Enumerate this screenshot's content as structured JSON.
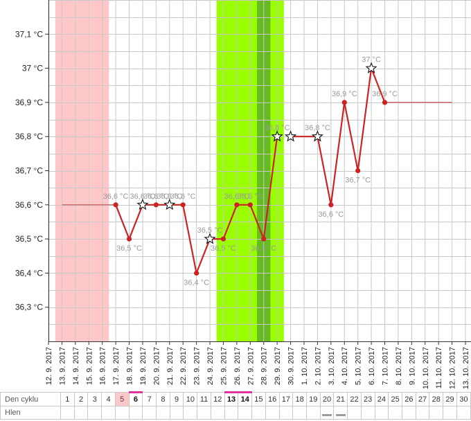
{
  "chart_data": {
    "type": "line",
    "y_unit_label": "°C",
    "ylim": [
      36.2,
      37.2
    ],
    "y_ticks": [
      "36,3 °C",
      "36,4 °C",
      "36,5 °C",
      "36,6 °C",
      "36,7 °C",
      "36,8 °C",
      "36,9 °C",
      "37 °C",
      "37,1 °C"
    ],
    "y_tick_values": [
      36.3,
      36.4,
      36.5,
      36.6,
      36.7,
      36.8,
      36.9,
      37.0,
      37.1
    ],
    "dates": [
      "12. 9. 2017",
      "13. 9. 2017",
      "14. 9. 2017",
      "15. 9. 2017",
      "16. 9. 2017",
      "17. 9. 2017",
      "18. 9. 2017",
      "19. 9. 2017",
      "20. 9. 2017",
      "21. 9. 2017",
      "22. 9. 2017",
      "23. 9. 2017",
      "24. 9. 2017",
      "25. 9. 2017",
      "26. 9. 2017",
      "27. 9. 2017",
      "28. 9. 2017",
      "29. 9. 2017",
      "30. 9. 2017",
      "1. 10. 2017",
      "2. 10. 2017",
      "3. 10. 2017",
      "4. 10. 2017",
      "5. 10. 2017",
      "6. 10. 2017",
      "7. 10. 2017",
      "8. 10. 2017",
      "9. 10. 2017",
      "10. 10. 2017",
      "11. 10. 2017",
      "12. 10. 2017",
      "13. 10. 2017"
    ],
    "grid": true,
    "regions": [
      {
        "kind": "menses",
        "from_index": 0.5,
        "to_index": 4.5,
        "color": "#ffc8c8"
      },
      {
        "kind": "fertile",
        "from_index": 12.5,
        "to_index": 17.5,
        "color": "#99ff00"
      },
      {
        "kind": "peak",
        "from_index": 15.5,
        "to_index": 16.5,
        "color": "#66bb22"
      }
    ],
    "coverline": [
      {
        "from_index": 1,
        "to_index": 5,
        "value": 36.6
      },
      {
        "from_index": 18,
        "to_index": 19,
        "value": 36.8
      },
      {
        "from_index": 25,
        "to_index": 30,
        "value": 36.9
      }
    ],
    "series": [
      {
        "color": "#cc2222",
        "points": [
          {
            "date_index": 5,
            "value": 36.6,
            "label": "36,6 °C",
            "marker": "dot"
          },
          {
            "date_index": 6,
            "value": 36.5,
            "label": "36,5 °C",
            "marker": "dot"
          },
          {
            "date_index": 7,
            "value": 36.6,
            "label": "36,6 °C",
            "marker": "star"
          },
          {
            "date_index": 8,
            "value": 36.6,
            "label": "36,6 °C",
            "marker": "dot"
          },
          {
            "date_index": 9,
            "value": 36.6,
            "label": "36,6 °C",
            "marker": "star"
          },
          {
            "date_index": 10,
            "value": 36.6,
            "label": "36,6 °C",
            "marker": "dot"
          },
          {
            "date_index": 11,
            "value": 36.4,
            "label": "36,4 °C",
            "marker": "dot"
          },
          {
            "date_index": 12,
            "value": 36.5,
            "label": "36,5 °C",
            "marker": "star"
          },
          {
            "date_index": 13,
            "value": 36.5,
            "label": "36,5 °C",
            "marker": "dot"
          },
          {
            "date_index": 14,
            "value": 36.6,
            "label": "36,6 °C",
            "marker": "dot"
          },
          {
            "date_index": 15,
            "value": 36.6,
            "label": "36,6 °C",
            "marker": "dot"
          },
          {
            "date_index": 16,
            "value": 36.5,
            "label": "36,5 °C",
            "marker": "dot"
          },
          {
            "date_index": 17,
            "value": 36.8,
            "label": "36,8 °C",
            "marker": "star"
          },
          {
            "date_index": 18,
            "value": 36.8,
            "label": "",
            "marker": "star",
            "no_line_in": true
          },
          {
            "date_index": 20,
            "value": 36.8,
            "label": "36,8 °C",
            "marker": "star"
          },
          {
            "date_index": 21,
            "value": 36.6,
            "label": "36,6 °C",
            "marker": "dot"
          },
          {
            "date_index": 22,
            "value": 36.9,
            "label": "36,9 °C",
            "marker": "dot"
          },
          {
            "date_index": 23,
            "value": 36.7,
            "label": "36,7 °C",
            "marker": "dot"
          },
          {
            "date_index": 24,
            "value": 37.0,
            "label": "37 °C",
            "marker": "star"
          },
          {
            "date_index": 25,
            "value": 36.9,
            "label": "36,9 °C",
            "marker": "dot"
          }
        ]
      }
    ]
  },
  "cycle_table": {
    "row_labels": [
      "Den cyklu",
      "Hlen"
    ],
    "days": [
      "1",
      "2",
      "3",
      "4",
      "5",
      "6",
      "7",
      "8",
      "9",
      "10",
      "11",
      "12",
      "13",
      "14",
      "15",
      "16",
      "17",
      "18",
      "19",
      "20",
      "21",
      "22",
      "23",
      "24",
      "25",
      "26",
      "27",
      "28",
      "29",
      "30"
    ],
    "menses_days": [
      5
    ],
    "marked_days": [
      6,
      13,
      14
    ],
    "mucus_days": [
      20,
      21
    ]
  },
  "colors": {
    "grid": "#c8c8c8",
    "axis": "#333333",
    "label": "#999999",
    "line": "#cc2222",
    "coverline": "#c05050"
  }
}
